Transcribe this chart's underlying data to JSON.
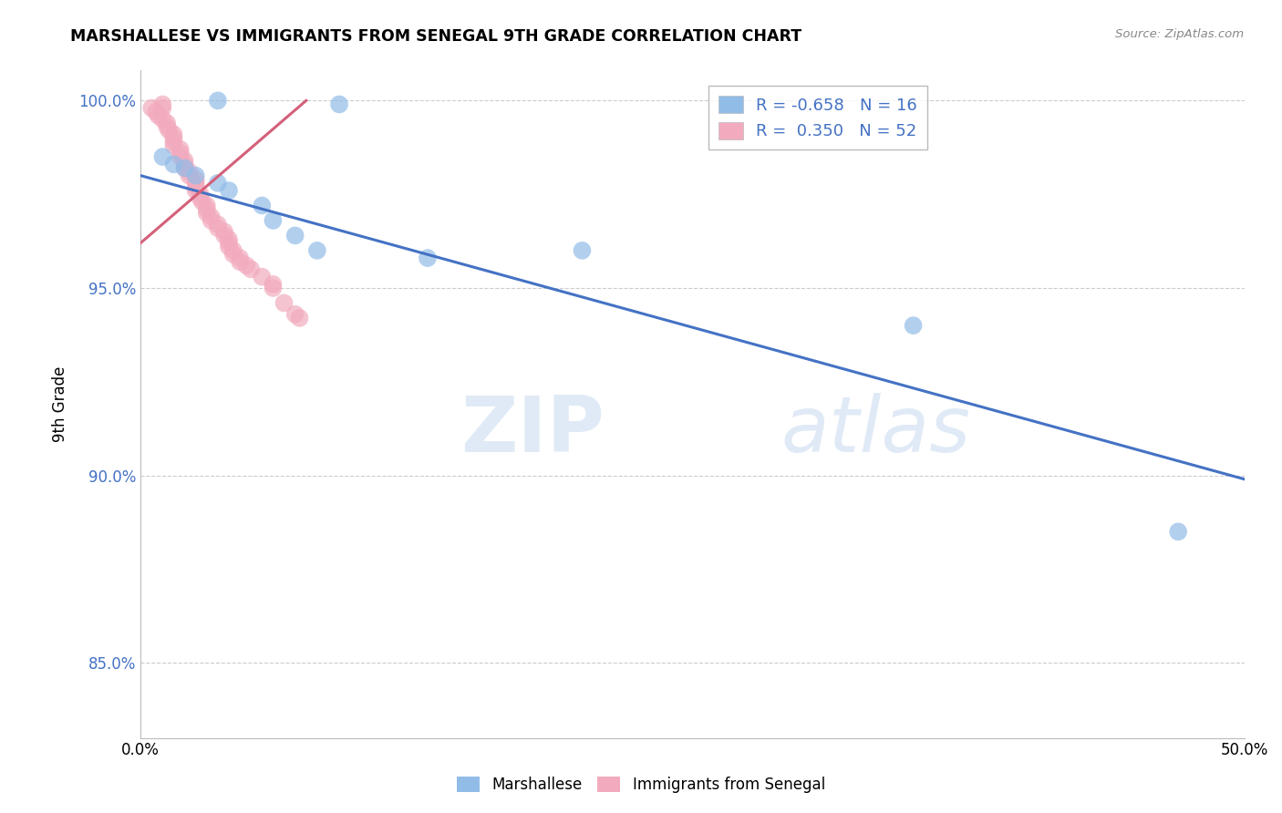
{
  "title": "MARSHALLESE VS IMMIGRANTS FROM SENEGAL 9TH GRADE CORRELATION CHART",
  "source_text": "Source: ZipAtlas.com",
  "ylabel": "9th Grade",
  "xlim": [
    0.0,
    0.5
  ],
  "ylim": [
    0.83,
    1.008
  ],
  "yticks": [
    0.85,
    0.9,
    0.95,
    1.0
  ],
  "ytick_labels": [
    "85.0%",
    "90.0%",
    "95.0%",
    "100.0%"
  ],
  "xticks": [
    0.0,
    0.1,
    0.2,
    0.3,
    0.4,
    0.5
  ],
  "xtick_labels": [
    "0.0%",
    "",
    "",
    "",
    "",
    "50.0%"
  ],
  "legend_r_marshallese": "-0.658",
  "legend_n_marshallese": "16",
  "legend_r_senegal": "0.350",
  "legend_n_senegal": "52",
  "color_marshallese": "#92bce8",
  "color_senegal": "#f2abbe",
  "color_line_marshallese": "#4472c4",
  "color_line_senegal": "#d4607a",
  "watermark_zip": "ZIP",
  "watermark_atlas": "atlas",
  "blue_scatter_x": [
    0.035,
    0.09,
    0.01,
    0.015,
    0.02,
    0.025,
    0.035,
    0.04,
    0.055,
    0.06,
    0.07,
    0.08,
    0.13,
    0.35,
    0.47,
    0.2
  ],
  "blue_scatter_y": [
    1.0,
    0.999,
    0.985,
    0.983,
    0.982,
    0.98,
    0.978,
    0.976,
    0.972,
    0.968,
    0.964,
    0.96,
    0.958,
    0.94,
    0.885,
    0.96
  ],
  "pink_scatter_x": [
    0.005,
    0.007,
    0.008,
    0.01,
    0.01,
    0.01,
    0.012,
    0.012,
    0.013,
    0.015,
    0.015,
    0.015,
    0.015,
    0.018,
    0.018,
    0.018,
    0.02,
    0.02,
    0.02,
    0.022,
    0.022,
    0.025,
    0.025,
    0.025,
    0.025,
    0.027,
    0.027,
    0.028,
    0.03,
    0.03,
    0.03,
    0.032,
    0.032,
    0.035,
    0.035,
    0.038,
    0.038,
    0.04,
    0.04,
    0.04,
    0.042,
    0.042,
    0.045,
    0.045,
    0.048,
    0.05,
    0.055,
    0.06,
    0.06,
    0.065,
    0.07,
    0.072
  ],
  "pink_scatter_y": [
    0.998,
    0.997,
    0.996,
    0.999,
    0.998,
    0.995,
    0.994,
    0.993,
    0.992,
    0.991,
    0.99,
    0.989,
    0.988,
    0.987,
    0.986,
    0.985,
    0.984,
    0.983,
    0.982,
    0.981,
    0.98,
    0.979,
    0.978,
    0.977,
    0.976,
    0.975,
    0.974,
    0.973,
    0.972,
    0.971,
    0.97,
    0.969,
    0.968,
    0.967,
    0.966,
    0.965,
    0.964,
    0.963,
    0.962,
    0.961,
    0.96,
    0.959,
    0.958,
    0.957,
    0.956,
    0.955,
    0.953,
    0.951,
    0.95,
    0.946,
    0.943,
    0.942
  ],
  "blue_line_x": [
    0.0,
    0.5
  ],
  "blue_line_y": [
    0.98,
    0.899
  ],
  "pink_line_x": [
    0.0,
    0.075
  ],
  "pink_line_y": [
    0.962,
    1.0
  ]
}
